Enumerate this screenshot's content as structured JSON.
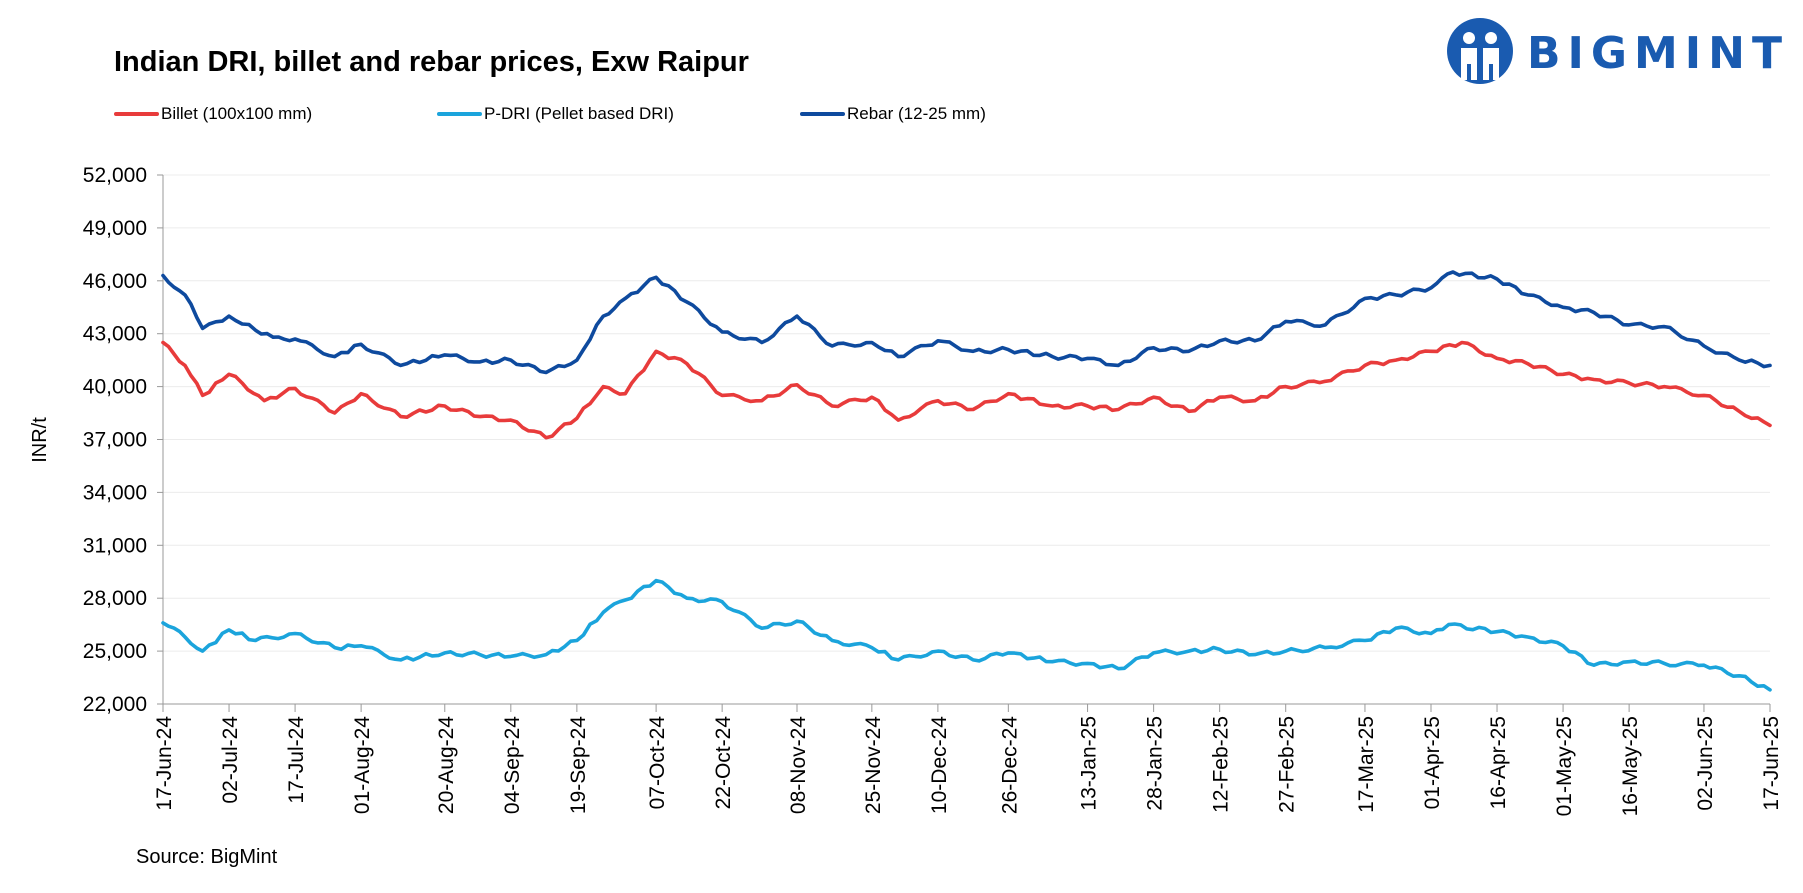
{
  "source": "Source: BigMint",
  "brand": {
    "name": "BIGMINT",
    "color": "#1a5bb0"
  },
  "chart_data": {
    "type": "line",
    "title": "Indian DRI, billet and rebar prices, Exw  Raipur",
    "xlabel": "",
    "ylabel": "INR/t",
    "ylim": [
      22000,
      52000
    ],
    "yticks": [
      "52,000",
      "49,000",
      "46,000",
      "43,000",
      "40,000",
      "37,000",
      "34,000",
      "31,000",
      "28,000",
      "25,000",
      "22,000"
    ],
    "xticks": [
      "17-Jun-24",
      "02-Jul-24",
      "17-Jul-24",
      "01-Aug-24",
      "20-Aug-24",
      "04-Sep-24",
      "19-Sep-24",
      "07-Oct-24",
      "22-Oct-24",
      "08-Nov-24",
      "25-Nov-24",
      "10-Dec-24",
      "26-Dec-24",
      "13-Jan-25",
      "28-Jan-25",
      "12-Feb-25",
      "27-Feb-25",
      "17-Mar-25",
      "01-Apr-25",
      "16-Apr-25",
      "01-May-25",
      "16-May-25",
      "02-Jun-25",
      "17-Jun-25"
    ],
    "grid": true,
    "legend_position": "top-left",
    "series": [
      {
        "name": "Billet (100x100 mm)",
        "color": "#e83b3b",
        "x": [
          "17-Jun-24",
          "22-Jun-24",
          "26-Jun-24",
          "02-Jul-24",
          "05-Jul-24",
          "10-Jul-24",
          "17-Jul-24",
          "26-Jul-24",
          "01-Aug-24",
          "10-Aug-24",
          "20-Aug-24",
          "28-Aug-24",
          "04-Sep-24",
          "12-Sep-24",
          "19-Sep-24",
          "25-Sep-24",
          "30-Sep-24",
          "07-Oct-24",
          "14-Oct-24",
          "22-Oct-24",
          "31-Oct-24",
          "08-Nov-24",
          "16-Nov-24",
          "25-Nov-24",
          "01-Dec-24",
          "10-Dec-24",
          "18-Dec-24",
          "26-Dec-24",
          "05-Jan-25",
          "13-Jan-25",
          "20-Jan-25",
          "28-Jan-25",
          "05-Feb-25",
          "12-Feb-25",
          "20-Feb-25",
          "27-Feb-25",
          "08-Mar-25",
          "17-Mar-25",
          "24-Mar-25",
          "01-Apr-25",
          "08-Apr-25",
          "16-Apr-25",
          "23-Apr-25",
          "01-May-25",
          "08-May-25",
          "16-May-25",
          "24-May-25",
          "02-Jun-25",
          "10-Jun-25",
          "17-Jun-25"
        ],
        "values": [
          42500,
          41200,
          39500,
          40700,
          40200,
          39200,
          39900,
          38500,
          39600,
          38300,
          38900,
          38300,
          38100,
          37100,
          38200,
          40000,
          39600,
          42000,
          41300,
          39500,
          39200,
          40100,
          38900,
          39400,
          38100,
          39200,
          38700,
          39600,
          38900,
          38900,
          38700,
          39400,
          38600,
          39400,
          39200,
          40000,
          40300,
          41200,
          41500,
          42000,
          42500,
          41600,
          41300,
          40700,
          40400,
          40200,
          40000,
          39500,
          38600,
          37800
        ]
      },
      {
        "name": "P-DRI (Pellet based DRI)",
        "color": "#1ba4dc",
        "x": [
          "17-Jun-24",
          "22-Jun-24",
          "26-Jun-24",
          "02-Jul-24",
          "08-Jul-24",
          "17-Jul-24",
          "26-Jul-24",
          "01-Aug-24",
          "10-Aug-24",
          "20-Aug-24",
          "28-Aug-24",
          "04-Sep-24",
          "12-Sep-24",
          "19-Sep-24",
          "25-Sep-24",
          "30-Sep-24",
          "07-Oct-24",
          "14-Oct-24",
          "22-Oct-24",
          "31-Oct-24",
          "08-Nov-24",
          "16-Nov-24",
          "25-Nov-24",
          "01-Dec-24",
          "10-Dec-24",
          "18-Dec-24",
          "26-Dec-24",
          "05-Jan-25",
          "13-Jan-25",
          "20-Jan-25",
          "28-Jan-25",
          "05-Feb-25",
          "12-Feb-25",
          "20-Feb-25",
          "27-Feb-25",
          "08-Mar-25",
          "17-Mar-25",
          "24-Mar-25",
          "01-Apr-25",
          "05-Apr-25",
          "16-Apr-25",
          "23-Apr-25",
          "01-May-25",
          "08-May-25",
          "16-May-25",
          "24-May-25",
          "02-Jun-25",
          "10-Jun-25",
          "17-Jun-25"
        ],
        "values": [
          26600,
          25800,
          25000,
          26200,
          25600,
          26000,
          25200,
          25300,
          24500,
          24900,
          24800,
          24700,
          24800,
          25600,
          27200,
          27900,
          29000,
          28000,
          27800,
          26300,
          26700,
          25600,
          25200,
          24500,
          25000,
          24500,
          24900,
          24400,
          24300,
          24000,
          24900,
          25000,
          25100,
          24800,
          25000,
          25200,
          25600,
          26300,
          26000,
          26500,
          26100,
          25800,
          25300,
          24200,
          24400,
          24300,
          24200,
          23600,
          22800
        ]
      },
      {
        "name": "Rebar (12-25 mm)",
        "color": "#0e4a9e",
        "x": [
          "17-Jun-24",
          "22-Jun-24",
          "26-Jun-24",
          "02-Jul-24",
          "08-Jul-24",
          "12-Jul-24",
          "17-Jul-24",
          "26-Jul-24",
          "01-Aug-24",
          "10-Aug-24",
          "20-Aug-24",
          "28-Aug-24",
          "04-Sep-24",
          "12-Sep-24",
          "19-Sep-24",
          "25-Sep-24",
          "30-Sep-24",
          "07-Oct-24",
          "14-Oct-24",
          "22-Oct-24",
          "31-Oct-24",
          "08-Nov-24",
          "16-Nov-24",
          "25-Nov-24",
          "01-Dec-24",
          "10-Dec-24",
          "18-Dec-24",
          "26-Dec-24",
          "05-Jan-25",
          "13-Jan-25",
          "20-Jan-25",
          "28-Jan-25",
          "05-Feb-25",
          "12-Feb-25",
          "20-Feb-25",
          "27-Feb-25",
          "08-Mar-25",
          "17-Mar-25",
          "24-Mar-25",
          "01-Apr-25",
          "06-Apr-25",
          "16-Apr-25",
          "23-Apr-25",
          "01-May-25",
          "08-May-25",
          "16-May-25",
          "24-May-25",
          "02-Jun-25",
          "10-Jun-25",
          "17-Jun-25"
        ],
        "values": [
          46300,
          45200,
          43300,
          44000,
          43200,
          42800,
          42700,
          41700,
          42400,
          41200,
          41800,
          41400,
          41500,
          40800,
          41500,
          44000,
          45000,
          46200,
          44800,
          43100,
          42500,
          44000,
          42300,
          42500,
          41700,
          42600,
          42000,
          42100,
          41700,
          41600,
          41200,
          42200,
          42000,
          42600,
          42600,
          43700,
          43500,
          45000,
          45200,
          45600,
          46500,
          46100,
          45200,
          44500,
          44200,
          43500,
          43400,
          42300,
          41500,
          41200
        ]
      }
    ]
  }
}
